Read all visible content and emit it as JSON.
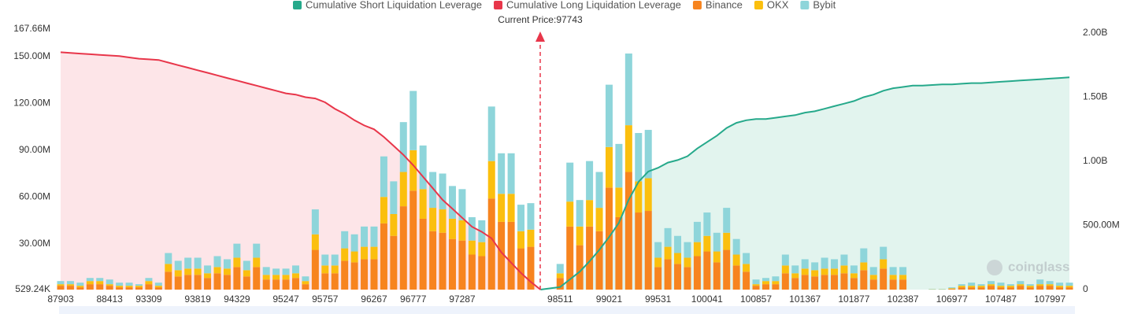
{
  "chart_data": {
    "type": "bar",
    "annotation": "Current Price:97743",
    "watermark": "coinglass",
    "categories": [
      "87903",
      null,
      null,
      null,
      null,
      "88413",
      null,
      null,
      null,
      "93309",
      null,
      null,
      null,
      null,
      "93819",
      null,
      null,
      null,
      "94329",
      null,
      null,
      null,
      null,
      "95247",
      null,
      null,
      null,
      "95757",
      null,
      null,
      null,
      null,
      "96267",
      null,
      null,
      null,
      "96777",
      null,
      null,
      null,
      null,
      "97287",
      null,
      null,
      null,
      null,
      null,
      null,
      null,
      null,
      null,
      "98511",
      null,
      null,
      null,
      null,
      "99021",
      null,
      null,
      null,
      null,
      "99531",
      null,
      null,
      null,
      null,
      "100041",
      null,
      null,
      null,
      null,
      "100857",
      null,
      null,
      null,
      null,
      "101367",
      null,
      null,
      null,
      null,
      "101877",
      null,
      null,
      null,
      null,
      "102387",
      null,
      null,
      null,
      null,
      "106977",
      null,
      null,
      null,
      null,
      "107487",
      null,
      null,
      null,
      null,
      "107997",
      null,
      null
    ],
    "ylim": [
      529240,
      167660000
    ],
    "yticks": [
      {
        "value": 529240,
        "label": "529.24K"
      },
      {
        "value": 30000000,
        "label": "30.00M"
      },
      {
        "value": 60000000,
        "label": "60.00M"
      },
      {
        "value": 90000000,
        "label": "90.00M"
      },
      {
        "value": 120000000,
        "label": "120.00M"
      },
      {
        "value": 150000000,
        "label": "150.00M"
      },
      {
        "value": 167660000,
        "label": "167.66M"
      }
    ],
    "y2lim": [
      0,
      2000000000
    ],
    "y2ticks": [
      0,
      {
        "value": 500000000,
        "label": "500.00M"
      },
      {
        "value": 1000000000,
        "label": "1.00B"
      },
      {
        "value": 1500000000,
        "label": "1.50B"
      },
      {
        "value": 2000000000,
        "label": "2.00B"
      }
    ],
    "grid": false,
    "series": [
      {
        "name": "Cumulative Short Liquidation Leverage",
        "type": "area",
        "axis": "y2",
        "color": "#26a98b",
        "fill": "#e2f4ee",
        "values": [
          null,
          null,
          null,
          null,
          null,
          null,
          null,
          null,
          null,
          null,
          null,
          null,
          null,
          null,
          null,
          null,
          null,
          null,
          null,
          null,
          null,
          null,
          null,
          null,
          null,
          null,
          null,
          null,
          null,
          null,
          null,
          null,
          null,
          null,
          null,
          null,
          null,
          null,
          null,
          null,
          null,
          null,
          null,
          null,
          null,
          null,
          null,
          null,
          null,
          0,
          10000000.0,
          20000000.0,
          80000000.0,
          140000000.0,
          220000000.0,
          310000000.0,
          410000000.0,
          520000000.0,
          700000000.0,
          840000000.0,
          920000000.0,
          950000000.0,
          990000000.0,
          1010000000.0,
          1040000000.0,
          1100000000.0,
          1150000000.0,
          1200000000.0,
          1260000000.0,
          1300000000.0,
          1320000000.0,
          1330000000.0,
          1330000000.0,
          1340000000.0,
          1350000000.0,
          1360000000.0,
          1380000000.0,
          1390000000.0,
          1410000000.0,
          1430000000.0,
          1450000000.0,
          1470000000.0,
          1500000000.0,
          1520000000.0,
          1550000000.0,
          1570000000.0,
          1580000000.0,
          1590000000.0,
          1590000000.0,
          1595000000.0,
          1600000000.0,
          1600000000.0,
          1605000000.0,
          1610000000.0,
          1610000000.0,
          1615000000.0,
          1620000000.0,
          1625000000.0,
          1630000000.0,
          1635000000.0,
          1640000000.0,
          1645000000.0,
          1650000000.0,
          1655000000.0
        ]
      },
      {
        "name": "Cumulative Long Liquidation Leverage",
        "type": "area",
        "axis": "y2",
        "color": "#e8364a",
        "fill": "#fde5e8",
        "values": [
          1850000000.0,
          1845000000.0,
          1840000000.0,
          1835000000.0,
          1830000000.0,
          1825000000.0,
          1820000000.0,
          1810000000.0,
          1800000000.0,
          1795000000.0,
          1790000000.0,
          1770000000.0,
          1750000000.0,
          1730000000.0,
          1710000000.0,
          1690000000.0,
          1670000000.0,
          1650000000.0,
          1630000000.0,
          1610000000.0,
          1590000000.0,
          1570000000.0,
          1550000000.0,
          1530000000.0,
          1520000000.0,
          1500000000.0,
          1490000000.0,
          1460000000.0,
          1410000000.0,
          1370000000.0,
          1320000000.0,
          1280000000.0,
          1250000000.0,
          1190000000.0,
          1120000000.0,
          1050000000.0,
          970000000.0,
          880000000.0,
          790000000.0,
          700000000.0,
          630000000.0,
          560000000.0,
          490000000.0,
          450000000.0,
          400000000.0,
          290000000.0,
          210000000.0,
          130000000.0,
          60000000.0,
          0,
          null,
          null,
          null,
          null,
          null,
          null,
          null,
          null,
          null,
          null,
          null,
          null,
          null,
          null,
          null,
          null,
          null,
          null,
          null,
          null,
          null,
          null,
          null,
          null,
          null,
          null,
          null,
          null,
          null,
          null,
          null,
          null,
          null,
          null,
          null,
          null,
          null,
          null,
          null,
          null,
          null,
          null,
          null,
          null,
          null,
          null,
          null,
          null,
          null,
          null,
          null,
          null,
          null,
          null
        ]
      },
      {
        "name": "Binance",
        "type": "bar",
        "color": "#f7841f",
        "values": [
          3000000.0,
          3000000.0,
          2000000.0,
          4000000.0,
          4000000.0,
          3000000.0,
          2000000.0,
          2000000.0,
          2000000.0,
          4000000.0,
          2000000.0,
          12000000.0,
          9000000.0,
          10000000.0,
          10000000.0,
          8000000.0,
          11000000.0,
          10000000.0,
          15000000.0,
          9000000.0,
          15000000.0,
          7000000.0,
          7000000.0,
          7000000.0,
          8000000.0,
          4000000.0,
          26000000.0,
          11000000.0,
          11000000.0,
          19000000.0,
          18000000.0,
          20000000.0,
          20000000.0,
          43000000.0,
          35000000.0,
          54000000.0,
          64000000.0,
          46000000.0,
          38000000.0,
          37000000.0,
          33000000.0,
          32000000.0,
          23000000.0,
          22000000.0,
          59000000.0,
          44000000.0,
          44000000.0,
          27000000.0,
          28000000.0,
          0,
          0,
          8000000.0,
          41000000.0,
          29000000.0,
          41000000.0,
          38000000.0,
          66000000.0,
          47000000.0,
          76000000.0,
          50000000.0,
          51000000.0,
          15000000.0,
          20000000.0,
          17000000.0,
          15000000.0,
          22000000.0,
          25000000.0,
          18000000.0,
          26000000.0,
          16000000.0,
          12000000.0,
          3000000.0,
          4000000.0,
          4000000.0,
          11000000.0,
          8000000.0,
          10000000.0,
          9000000.0,
          10000000.0,
          10000000.0,
          11000000.0,
          8000000.0,
          13000000.0,
          7000000.0,
          14000000.0,
          7000000.0,
          7000000.0,
          0,
          0,
          500000.0,
          500000.0,
          1000000.0,
          2000000.0,
          2000000.0,
          2000000.0,
          3000000.0,
          2000000.0,
          2000000.0,
          3000000.0,
          2000000.0,
          3000000.0,
          3000000.0,
          2000000.0,
          2000000.0
        ]
      },
      {
        "name": "OKX",
        "type": "bar",
        "color": "#fbbf0e",
        "values": [
          1000000.0,
          1000000.0,
          1000000.0,
          2000000.0,
          2000000.0,
          1000000.0,
          1000000.0,
          1000000.0,
          1000000.0,
          2000000.0,
          1000000.0,
          5000000.0,
          4000000.0,
          4000000.0,
          4000000.0,
          3000000.0,
          4000000.0,
          4000000.0,
          6000000.0,
          4000000.0,
          6000000.0,
          3000000.0,
          3000000.0,
          3000000.0,
          3000000.0,
          2000000.0,
          10000000.0,
          5000000.0,
          5000000.0,
          8000000.0,
          7000000.0,
          8000000.0,
          8000000.0,
          17000000.0,
          14000000.0,
          22000000.0,
          26000000.0,
          19000000.0,
          15000000.0,
          15000000.0,
          13000000.0,
          13000000.0,
          9000000.0,
          9000000.0,
          24000000.0,
          18000000.0,
          18000000.0,
          11000000.0,
          11000000.0,
          0,
          0,
          3000000.0,
          16000000.0,
          12000000.0,
          17000000.0,
          15000000.0,
          26000000.0,
          19000000.0,
          30000000.0,
          20000000.0,
          21000000.0,
          6000000.0,
          8000000.0,
          7000000.0,
          6000000.0,
          9000000.0,
          10000000.0,
          7000000.0,
          11000000.0,
          7000000.0,
          5000000.0,
          1000000.0,
          2000000.0,
          2000000.0,
          5000000.0,
          3000000.0,
          4000000.0,
          4000000.0,
          4000000.0,
          4000000.0,
          5000000.0,
          3000000.0,
          5000000.0,
          3000000.0,
          6000000.0,
          3000000.0,
          3000000.0,
          0,
          0,
          200000.0,
          200000.0,
          400000.0,
          1000000.0,
          1000000.0,
          1000000.0,
          1000000.0,
          1000000.0,
          1000000.0,
          1000000.0,
          1000000.0,
          1000000.0,
          1000000.0,
          1000000.0,
          1000000.0
        ]
      },
      {
        "name": "Bybit",
        "type": "bar",
        "color": "#8ed5da",
        "values": [
          2000000.0,
          2000000.0,
          2000000.0,
          2000000.0,
          2000000.0,
          3000000.0,
          2000000.0,
          2000000.0,
          1000000.0,
          2000000.0,
          2000000.0,
          7000000.0,
          6000000.0,
          7000000.0,
          7000000.0,
          5000000.0,
          7000000.0,
          6000000.0,
          9000000.0,
          6000000.0,
          9000000.0,
          5000000.0,
          4000000.0,
          4000000.0,
          5000000.0,
          3000000.0,
          16000000.0,
          7000000.0,
          7000000.0,
          11000000.0,
          11000000.0,
          13000000.0,
          13000000.0,
          26000000.0,
          21000000.0,
          32000000.0,
          38000000.0,
          28000000.0,
          23000000.0,
          23000000.0,
          21000000.0,
          20000000.0,
          15000000.0,
          14000000.0,
          35000000.0,
          26000000.0,
          26000000.0,
          17000000.0,
          17000000.0,
          0,
          0,
          6000000.0,
          25000000.0,
          17000000.0,
          25000000.0,
          23000000.0,
          40000000.0,
          28000000.0,
          46000000.0,
          31000000.0,
          31000000.0,
          10000000.0,
          12000000.0,
          11000000.0,
          10000000.0,
          13000000.0,
          15000000.0,
          12000000.0,
          16000000.0,
          10000000.0,
          7000000.0,
          3000000.0,
          2000000.0,
          3000000.0,
          7000000.0,
          5000000.0,
          6000000.0,
          5000000.0,
          7000000.0,
          6000000.0,
          7000000.0,
          5000000.0,
          9000000.0,
          5000000.0,
          8000000.0,
          5000000.0,
          5000000.0,
          0,
          0,
          300000.0,
          300000.0,
          600000.0,
          1000000.0,
          2000000.0,
          1000000.0,
          2000000.0,
          2000000.0,
          1000000.0,
          2000000.0,
          1000000.0,
          3000000.0,
          2000000.0,
          2000000.0,
          2000000.0
        ]
      }
    ]
  }
}
